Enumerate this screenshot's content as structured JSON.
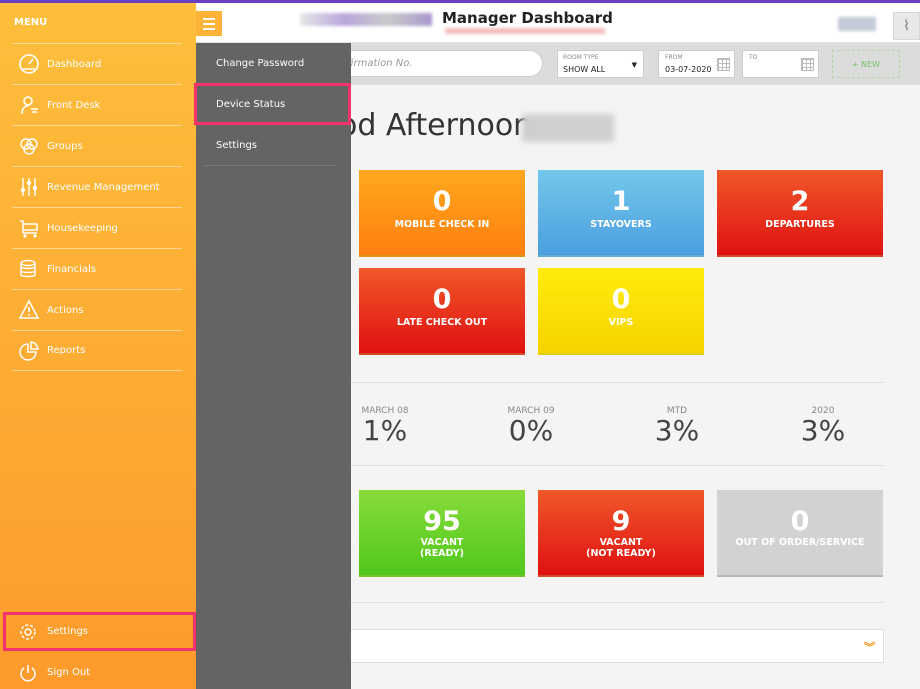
{
  "header": {
    "title": "Manager Dashboard"
  },
  "toolbar": {
    "search_placeholder": "firmation No.",
    "room_type_label": "ROOM TYPE",
    "room_type_value": "SHOW ALL",
    "from_label": "FROM",
    "from_value": "03-07-2020",
    "to_label": "TO",
    "to_value": "",
    "new_label": "+ NEW"
  },
  "greeting": "od Afternoon",
  "tiles_top": [
    {
      "value": "0",
      "label": "MOBILE CHECK IN",
      "color": "#ff8f16"
    },
    {
      "value": "1",
      "label": "STAYOVERS",
      "color": "#5fb3e6"
    },
    {
      "value": "2",
      "label": "DEPARTURES",
      "color": "#e8361d"
    },
    {
      "value": "0",
      "label": "LATE CHECK OUT",
      "color": "#e8361d"
    },
    {
      "value": "0",
      "label": "VIPS",
      "color": "#f9df05"
    }
  ],
  "stats": [
    {
      "label": "MARCH 08",
      "value": "1%"
    },
    {
      "label": "MARCH 09",
      "value": "0%"
    },
    {
      "label": "MTD",
      "value": "3%"
    },
    {
      "label": "2020",
      "value": "3%"
    }
  ],
  "tiles_bottom": [
    {
      "value": "95",
      "label1": "VACANT",
      "label2": "(READY)",
      "color": "#6cd02a"
    },
    {
      "value": "9",
      "label1": "VACANT",
      "label2": "(NOT READY)",
      "color": "#e8361d"
    },
    {
      "value": "0",
      "label1": "OUT OF ORDER/SERVICE",
      "label2": "",
      "color": "#d2d2d2"
    }
  ],
  "menu": {
    "title": "MENU",
    "items": [
      {
        "label": "Dashboard",
        "icon": "speedometer-icon"
      },
      {
        "label": "Front Desk",
        "icon": "concierge-icon"
      },
      {
        "label": "Groups",
        "icon": "groups-icon"
      },
      {
        "label": "Revenue Management",
        "icon": "sliders-icon"
      },
      {
        "label": "Housekeeping",
        "icon": "cart-icon"
      },
      {
        "label": "Financials",
        "icon": "coins-icon"
      },
      {
        "label": "Actions",
        "icon": "warning-icon"
      },
      {
        "label": "Reports",
        "icon": "pie-chart-icon"
      }
    ],
    "settings": "Settings",
    "sign_out": "Sign Out"
  },
  "submenu": {
    "items": [
      "Change Password",
      "Device Status",
      "Settings"
    ]
  },
  "colors": {
    "menu": "#fdaa33",
    "submenu": "#646464",
    "highlight": "#f2316d",
    "accent": "#6a3fc0"
  }
}
